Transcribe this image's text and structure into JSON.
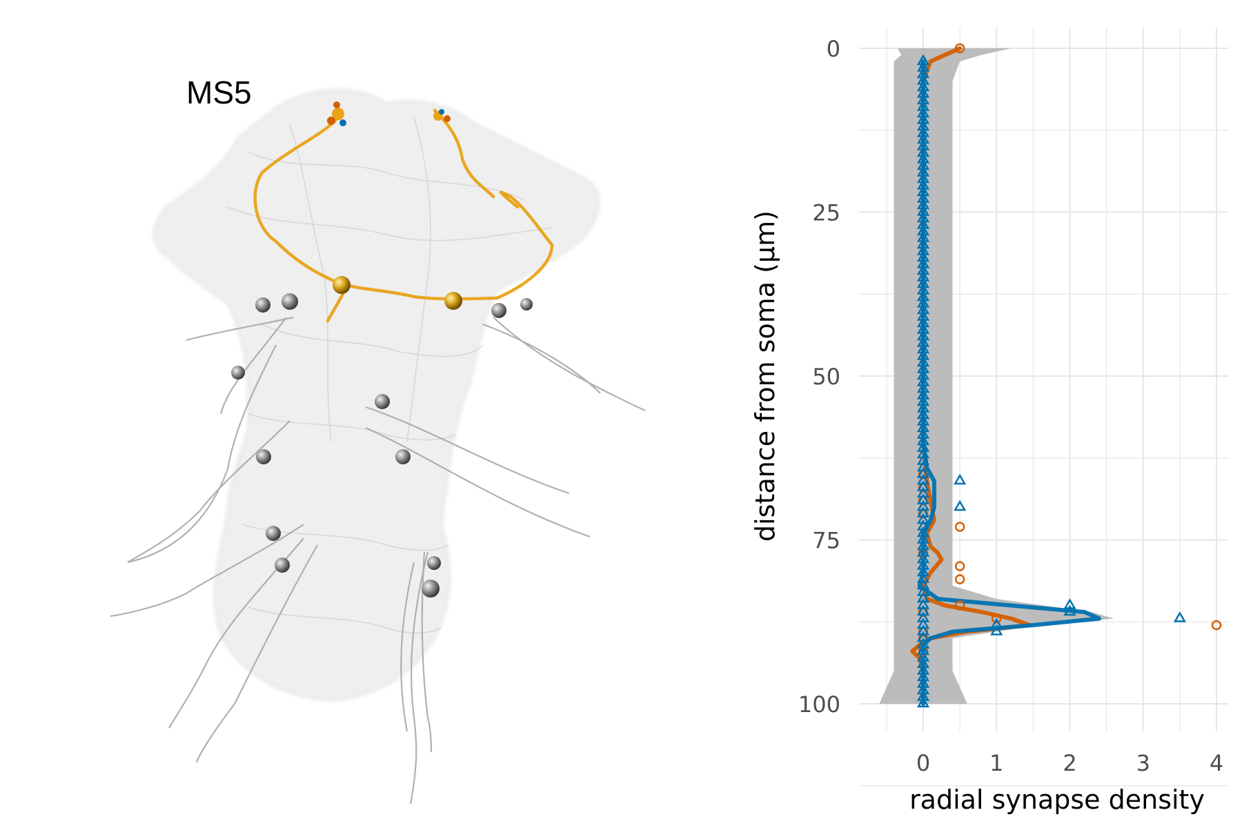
{
  "panel_label": "MS5",
  "colors": {
    "orange_series": "#d55e00",
    "blue_series": "#0072b2",
    "neuron": "#e8a317",
    "background_neurons": "#9a9a9a",
    "ribbon": "#b5b5b5",
    "grid": "#e6e6e6"
  },
  "chart_data": {
    "type": "line",
    "xlabel": "radial synapse density",
    "ylabel": "distance from soma (µm)",
    "xlim": [
      -0.5,
      4.2
    ],
    "ylim": [
      0,
      100
    ],
    "y_reversed": true,
    "xticks": [
      0,
      1,
      2,
      3,
      4
    ],
    "yticks": [
      0,
      25,
      50,
      75,
      100
    ],
    "grid": true,
    "legend": "none",
    "null_band": {
      "y": [
        0,
        1,
        2,
        5,
        10,
        20,
        30,
        40,
        50,
        60,
        65,
        70,
        75,
        78,
        80,
        82,
        84,
        86,
        87,
        88,
        90,
        92,
        95,
        100
      ],
      "lo": [
        -0.35,
        -0.3,
        -0.4,
        -0.4,
        -0.4,
        -0.4,
        -0.4,
        -0.4,
        -0.4,
        -0.4,
        -0.4,
        -0.4,
        -0.4,
        -0.4,
        -0.4,
        -0.4,
        -0.4,
        -0.4,
        -0.4,
        -0.4,
        -0.4,
        -0.4,
        -0.4,
        -0.6
      ],
      "hi": [
        1.2,
        0.8,
        0.5,
        0.4,
        0.4,
        0.4,
        0.4,
        0.4,
        0.4,
        0.4,
        0.4,
        0.4,
        0.4,
        0.4,
        0.4,
        0.4,
        1.0,
        2.3,
        2.6,
        1.6,
        0.4,
        0.4,
        0.4,
        0.6
      ]
    },
    "series": [
      {
        "color": "#d55e00",
        "smooth_y": [
          0,
          2,
          5,
          20,
          60,
          66,
          69,
          72,
          74,
          76,
          77,
          78,
          80,
          82,
          84,
          85,
          86,
          87,
          88,
          89,
          90,
          91,
          92,
          93,
          95,
          100
        ],
        "smooth_x": [
          0.5,
          0.1,
          0.0,
          0.0,
          0.0,
          0.05,
          0.1,
          0.15,
          0.05,
          0.1,
          0.2,
          0.25,
          0.1,
          0.0,
          0.05,
          0.3,
          0.8,
          1.2,
          1.45,
          0.6,
          0.1,
          -0.05,
          -0.15,
          -0.05,
          0.0,
          0.0
        ],
        "points_y": [
          0,
          65,
          67,
          69,
          71,
          73,
          77,
          79,
          81,
          85,
          86,
          87,
          88,
          89,
          90,
          92
        ],
        "points_x": [
          0.5,
          0,
          0,
          0,
          0,
          0.5,
          0,
          0.5,
          0.5,
          0.5,
          0,
          1.0,
          4.0,
          0,
          0,
          0
        ]
      },
      {
        "color": "#0072b2",
        "smooth_y": [
          2,
          20,
          40,
          60,
          64,
          66,
          68,
          70,
          72,
          74,
          76,
          78,
          80,
          82,
          84,
          85,
          86,
          87,
          88,
          89,
          90,
          91,
          92,
          95,
          100
        ],
        "smooth_x": [
          0,
          0,
          0,
          0,
          0.05,
          0.15,
          0.15,
          0.15,
          0.1,
          0.0,
          0.0,
          0.0,
          0.0,
          -0.05,
          0.2,
          1.2,
          2.2,
          2.4,
          1.5,
          0.4,
          0.1,
          0.0,
          0.0,
          0.0,
          0.0
        ],
        "points_y": [
          2,
          66,
          70,
          82,
          84,
          85,
          86,
          87,
          88,
          89,
          90
        ],
        "points_x": [
          0,
          0.5,
          0.5,
          0,
          0,
          2.0,
          2.0,
          3.5,
          1.0,
          1.0,
          0
        ]
      }
    ]
  }
}
